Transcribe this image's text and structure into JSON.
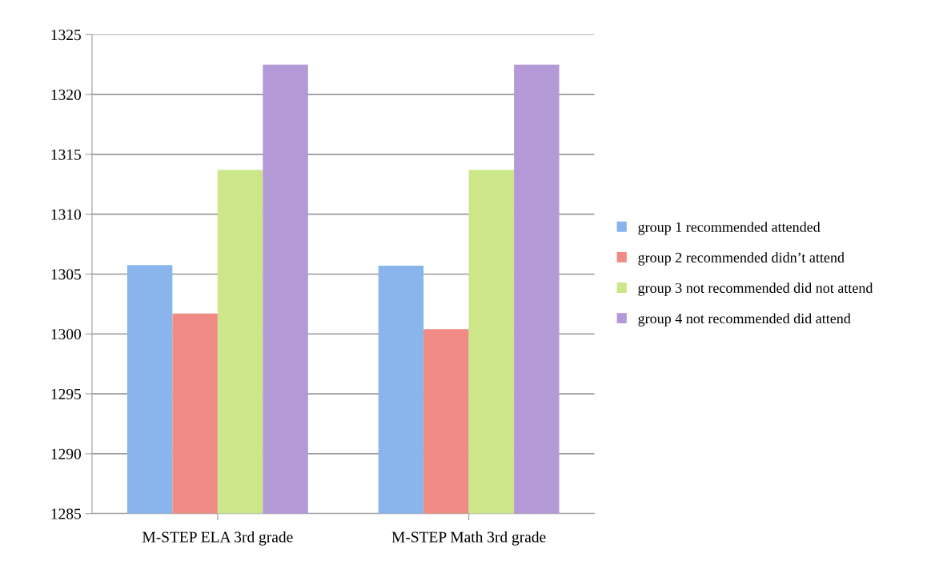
{
  "chart_data": {
    "type": "bar",
    "categories": [
      "M-STEP ELA 3rd grade",
      "M-STEP Math 3rd grade"
    ],
    "series": [
      {
        "name": "group 1 recommended attended",
        "color": "#8ab4ec",
        "values": [
          1305.75,
          1305.7
        ]
      },
      {
        "name": "group 2 recommended didn’t attend",
        "color": "#f08a84",
        "values": [
          1301.7,
          1300.4
        ]
      },
      {
        "name": "group 3 not recommended did not attend",
        "color": "#cce68a",
        "values": [
          1313.7,
          1313.7
        ]
      },
      {
        "name": "group 4 not recommended did attend",
        "color": "#b39ad6",
        "values": [
          1322.5,
          1322.5
        ]
      }
    ],
    "ylim": [
      1285,
      1325
    ],
    "yticks": [
      1285,
      1290,
      1295,
      1300,
      1305,
      1310,
      1315,
      1320,
      1325
    ],
    "grid": "y",
    "legend": "right"
  }
}
